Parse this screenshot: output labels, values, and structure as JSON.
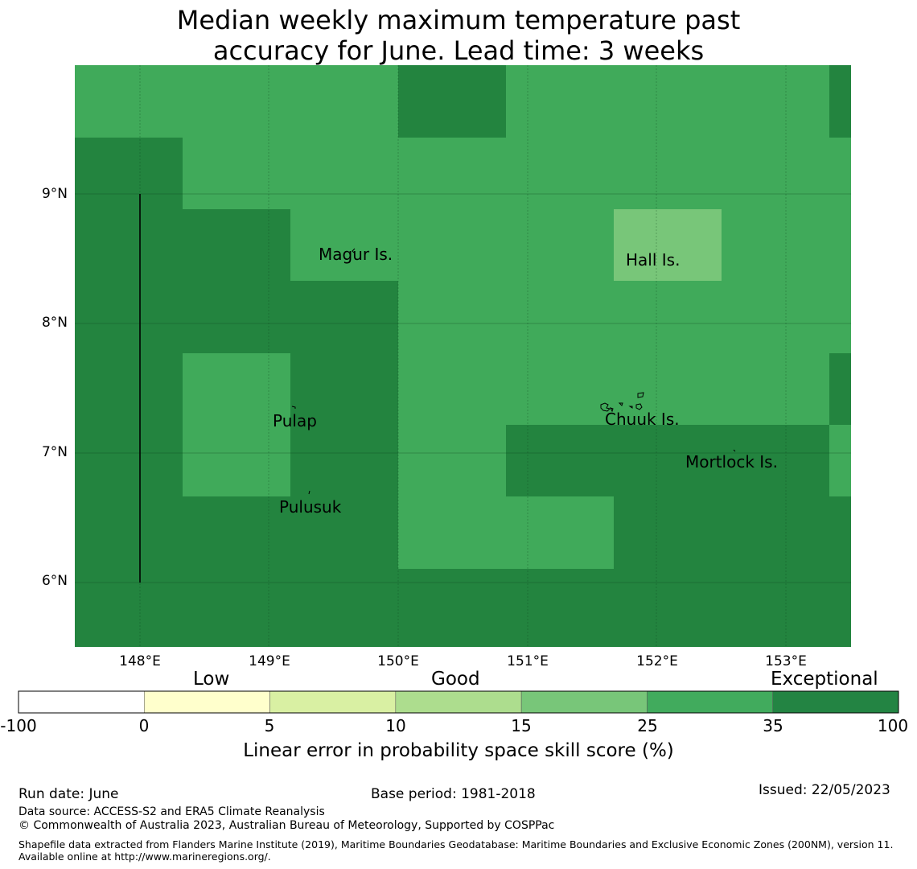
{
  "title": {
    "line1": "Median weekly maximum temperature past",
    "line2": "accuracy for June. Lead time: 3 weeks"
  },
  "map": {
    "lat_ticks": [
      "9°N",
      "8°N",
      "7°N",
      "6°N"
    ],
    "lon_ticks": [
      "148°E",
      "149°E",
      "150°E",
      "151°E",
      "152°E",
      "153°E"
    ],
    "islands": [
      "Magur Is.",
      "Hall Is.",
      "Pulap",
      "Chuuk Is.",
      "Mortlock Is.",
      "Pulusuk"
    ],
    "cell_colors": {
      "exceptional": "#23843f",
      "good_high": "#40aa5a",
      "good_mid": "#78c679"
    }
  },
  "colorbar": {
    "categories": [
      "Low",
      "Good",
      "Exceptional"
    ],
    "ticks": [
      "-100",
      "0",
      "5",
      "10",
      "15",
      "25",
      "35",
      "100"
    ],
    "colors": [
      "#ffffff",
      "#ffffcc",
      "#d9f0a3",
      "#addd8e",
      "#78c679",
      "#41ab5d",
      "#238443"
    ],
    "label": "Linear error in probability space skill score (%)"
  },
  "footer": {
    "run_date": "Run date: June",
    "base_period": "Base period: 1981-2018",
    "issued": "Issued: 22/05/2023",
    "data_source": "Data source: ACCESS-S2 and ERA5 Climate Reanalysis",
    "copyright": "© Commonwealth of Australia 2023, Australian Bureau of Meteorology, Supported by COSPPac",
    "shapefile": "Shapefile data extracted from Flanders Marine Institute (2019), Maritime Boundaries Geodatabase: Maritime Boundaries and Exclusive Economic Zones (200NM), version 11. Available online at http://www.marineregions.org/."
  }
}
